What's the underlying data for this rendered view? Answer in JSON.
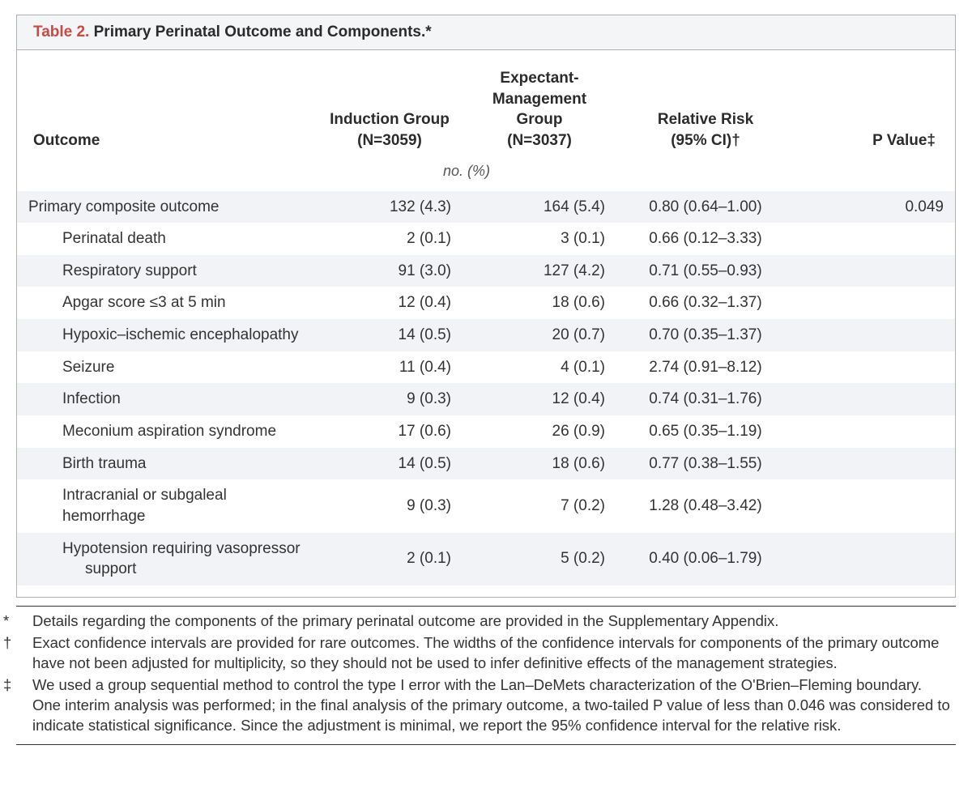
{
  "table": {
    "label": "Table 2.",
    "title": "Primary Perinatal Outcome and Components.*",
    "headers": {
      "outcome": "Outcome",
      "group1_line1": "Induction Group",
      "group1_line2": "(N=3059)",
      "group2_line1": "Expectant-",
      "group2_line2": "Management",
      "group2_line3": "Group",
      "group2_line4": "(N=3037)",
      "rr_line1": "Relative Risk",
      "rr_line2": "(95% CI)†",
      "pvalue": "P Value‡"
    },
    "unit_label": "no. (%)",
    "rows": [
      {
        "label": "Primary composite outcome",
        "indent": 0,
        "g1": "132 (4.3)",
        "g2": "164 (5.4)",
        "rr": "0.80 (0.64–1.00)",
        "p": "0.049",
        "alt": true
      },
      {
        "label": "Perinatal death",
        "indent": 1,
        "g1": "2 (0.1)",
        "g2": "3 (0.1)",
        "rr": "0.66 (0.12–3.33)",
        "p": "",
        "alt": false
      },
      {
        "label": "Respiratory support",
        "indent": 1,
        "g1": "91 (3.0)",
        "g2": "127 (4.2)",
        "rr": "0.71 (0.55–0.93)",
        "p": "",
        "alt": true
      },
      {
        "label": "Apgar score ≤3 at 5 min",
        "indent": 1,
        "g1": "12 (0.4)",
        "g2": "18 (0.6)",
        "rr": "0.66 (0.32–1.37)",
        "p": "",
        "alt": false
      },
      {
        "label": "Hypoxic–ischemic encephalopathy",
        "indent": 1,
        "g1": "14 (0.5)",
        "g2": "20 (0.7)",
        "rr": "0.70 (0.35–1.37)",
        "p": "",
        "alt": true
      },
      {
        "label": "Seizure",
        "indent": 1,
        "g1": "11 (0.4)",
        "g2": "4 (0.1)",
        "rr": "2.74 (0.91–8.12)",
        "p": "",
        "alt": false
      },
      {
        "label": "Infection",
        "indent": 1,
        "g1": "9 (0.3)",
        "g2": "12 (0.4)",
        "rr": "0.74 (0.31–1.76)",
        "p": "",
        "alt": true
      },
      {
        "label": "Meconium aspiration syndrome",
        "indent": 1,
        "g1": "17 (0.6)",
        "g2": "26 (0.9)",
        "rr": "0.65 (0.35–1.19)",
        "p": "",
        "alt": false
      },
      {
        "label": "Birth trauma",
        "indent": 1,
        "g1": "14 (0.5)",
        "g2": "18 (0.6)",
        "rr": "0.77 (0.38–1.55)",
        "p": "",
        "alt": true
      },
      {
        "label": "Intracranial or subgaleal hemorrhage",
        "indent": 1,
        "g1": "9 (0.3)",
        "g2": "7 (0.2)",
        "rr": "1.28 (0.48–3.42)",
        "p": "",
        "alt": false
      },
      {
        "label": "Hypotension requiring vasopressor",
        "label2": "support",
        "indent": 1,
        "g1": "2 (0.1)",
        "g2": "5 (0.2)",
        "rr": "0.40 (0.06–1.79)",
        "p": "",
        "alt": true
      }
    ]
  },
  "footnotes": {
    "a_mark": "*",
    "a_text": "Details regarding the components of the primary perinatal outcome are provided in the Supplementary Appendix.",
    "b_mark": "†",
    "b_text": "Exact confidence intervals are provided for rare outcomes. The widths of the confidence intervals for components of the primary outcome have not been adjusted for multiplicity, so they should not be used to infer definitive effects of the management strategies.",
    "c_mark": "‡",
    "c_text": "We used a group sequential method to control the type I error with the Lan–DeMets characterization of the O'Brien–Fleming boundary. One interim analysis was performed; in the final analysis of the primary outcome, a two-tailed P value of less than 0.046 was considered to indicate statistical significance. Since the adjustment is minimal, we report the 95% confidence interval for the relative risk."
  },
  "style": {
    "accent_color": "#c74a43",
    "stripe_color": "#f1f3f6",
    "border_color": "#b0b0b0",
    "text_color": "#333333",
    "font_size_pt": 14
  }
}
